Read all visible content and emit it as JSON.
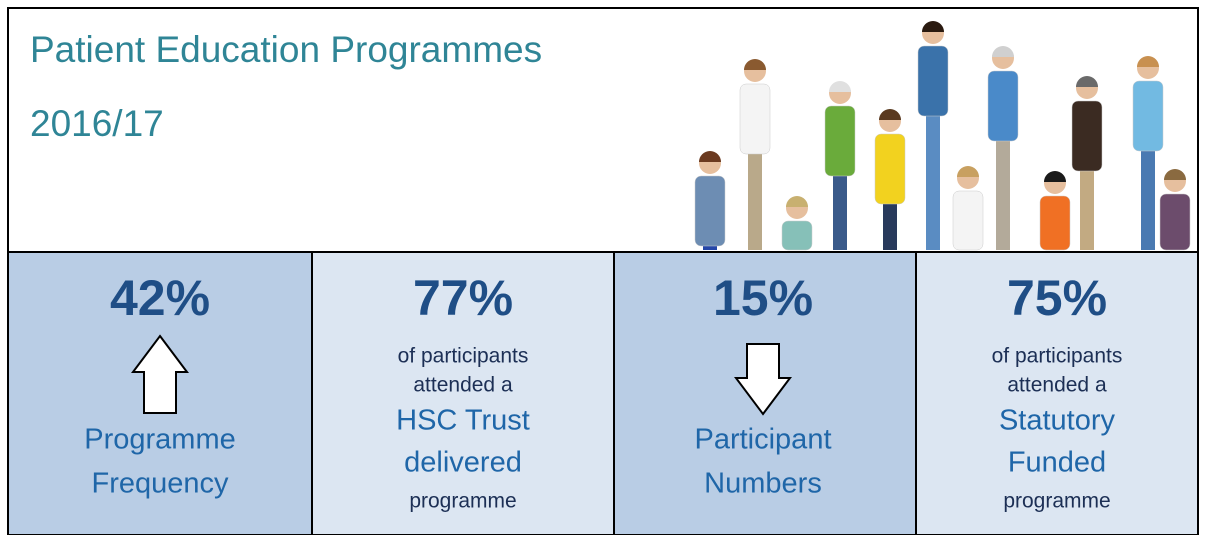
{
  "header": {
    "title": "Patient Education Programmes",
    "subtitle": "2016/17"
  },
  "tiles": [
    {
      "value": "42%",
      "lines": [
        "Programme",
        "Frequency"
      ]
    },
    {
      "value": "77%",
      "lines": [
        "of participants",
        "attended a",
        "HSC Trust",
        "delivered",
        "programme"
      ]
    },
    {
      "value": "15%",
      "lines": [
        "Participant",
        "Numbers"
      ]
    },
    {
      "value": "75%",
      "lines": [
        "of participants",
        "attended a",
        "Statutory",
        "Funded",
        "programme"
      ]
    }
  ]
}
